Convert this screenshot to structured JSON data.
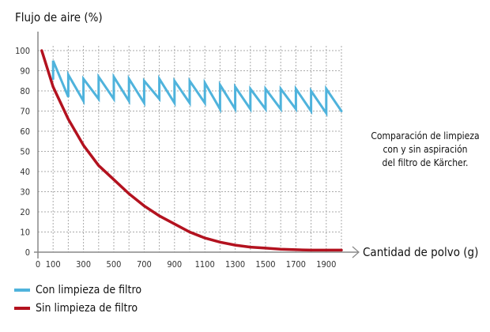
{
  "chart_data": {
    "type": "line",
    "title": "",
    "ylabel": "Flujo de aire (%)",
    "xlabel": "Cantidad de polvo (g)",
    "xlim": [
      0,
      2000
    ],
    "ylim": [
      0,
      100
    ],
    "grid": true,
    "x_ticks": [
      "0",
      "100",
      "300",
      "500",
      "700",
      "900",
      "1100",
      "1300",
      "1500",
      "1700",
      "1900"
    ],
    "x_tick_values": [
      0,
      100,
      300,
      500,
      700,
      900,
      1100,
      1300,
      1500,
      1700,
      1900
    ],
    "y_ticks": [
      "0",
      "10",
      "20",
      "30",
      "40",
      "50",
      "60",
      "70",
      "80",
      "90",
      "100"
    ],
    "annotation": [
      "Comparación de limpieza",
      "con y sin aspiración",
      "del filtro de Kärcher."
    ],
    "legend_position": "bottom-left",
    "series": [
      {
        "name": "Con limpieza de filtro",
        "color": "#4fb3dc",
        "points": [
          [
            100,
            86
          ],
          [
            100,
            95
          ],
          [
            200,
            77
          ],
          [
            200,
            88
          ],
          [
            300,
            75
          ],
          [
            300,
            86
          ],
          [
            400,
            76
          ],
          [
            400,
            87
          ],
          [
            500,
            76
          ],
          [
            500,
            87
          ],
          [
            600,
            75
          ],
          [
            600,
            86
          ],
          [
            700,
            74
          ],
          [
            700,
            85
          ],
          [
            800,
            76
          ],
          [
            800,
            86
          ],
          [
            900,
            74
          ],
          [
            900,
            85
          ],
          [
            1000,
            74
          ],
          [
            1000,
            85
          ],
          [
            1100,
            74
          ],
          [
            1100,
            84
          ],
          [
            1200,
            71
          ],
          [
            1200,
            83
          ],
          [
            1300,
            71
          ],
          [
            1300,
            82
          ],
          [
            1400,
            71
          ],
          [
            1400,
            81
          ],
          [
            1500,
            71
          ],
          [
            1500,
            81
          ],
          [
            1600,
            71
          ],
          [
            1600,
            81
          ],
          [
            1700,
            71
          ],
          [
            1700,
            81
          ],
          [
            1800,
            70
          ],
          [
            1800,
            80
          ],
          [
            1900,
            69
          ],
          [
            1900,
            81
          ],
          [
            2000,
            70
          ]
        ]
      },
      {
        "name": "Sin limpieza de filtro",
        "color": "#b3121f",
        "points": [
          [
            25,
            100
          ],
          [
            100,
            82
          ],
          [
            200,
            66
          ],
          [
            300,
            53
          ],
          [
            400,
            43
          ],
          [
            500,
            36
          ],
          [
            600,
            29
          ],
          [
            700,
            23
          ],
          [
            800,
            18
          ],
          [
            900,
            14
          ],
          [
            1000,
            10
          ],
          [
            1100,
            7
          ],
          [
            1200,
            5
          ],
          [
            1300,
            3.5
          ],
          [
            1400,
            2.5
          ],
          [
            1500,
            2
          ],
          [
            1600,
            1.5
          ],
          [
            1700,
            1.2
          ],
          [
            1800,
            1
          ],
          [
            1900,
            1
          ],
          [
            2000,
            1
          ]
        ]
      }
    ]
  }
}
